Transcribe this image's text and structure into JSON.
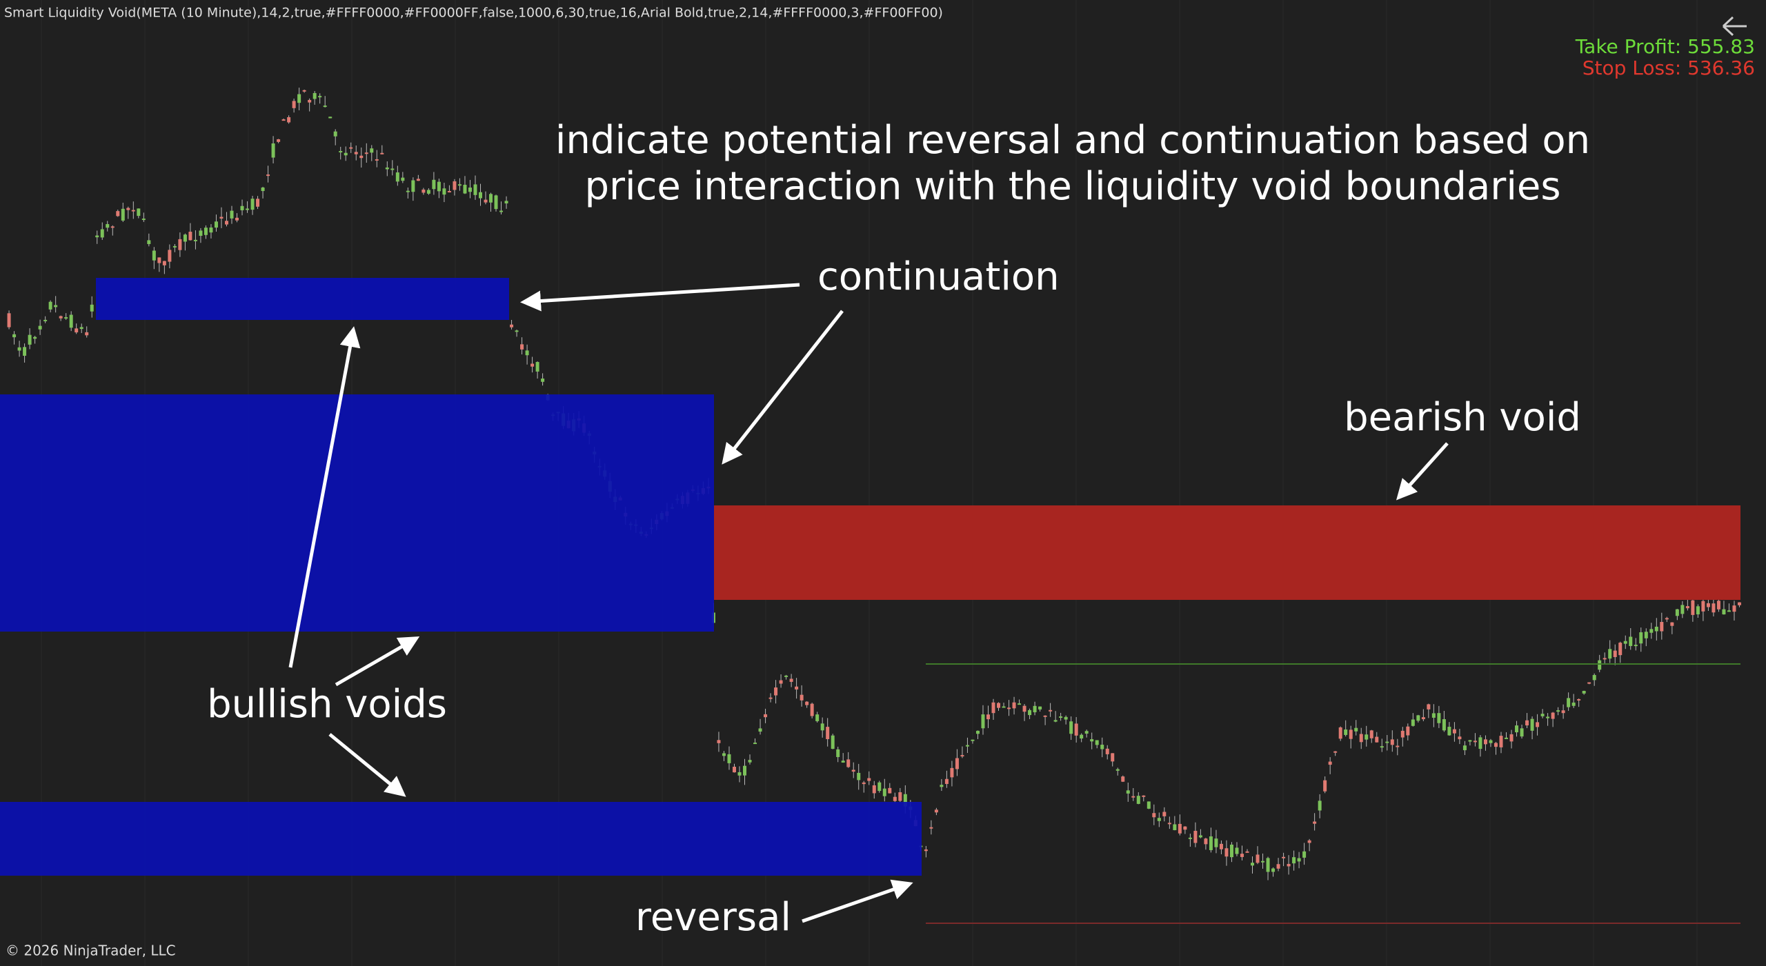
{
  "header": {
    "indicator": "Smart Liquidity Void(META (10 Minute),14,2,true,#FFFF0000,#FF0000FF,false,1000,6,30,true,16,Arial Bold,true,2,14,#FFFF0000,3,#FF00FF00)",
    "take_profit": "Take Profit: 555.83",
    "stop_loss": "Stop Loss: 536.36"
  },
  "annotations": {
    "headline": [
      "indicate potential reversal and continuation based on",
      "price interaction with the liquidity void boundaries"
    ],
    "continuation": "continuation",
    "bearish_void": "bearish void",
    "bullish_voids": "bullish voids",
    "reversal": "reversal"
  },
  "footer": {
    "copyright": "© 2026 NinjaTrader, LLC"
  }
}
